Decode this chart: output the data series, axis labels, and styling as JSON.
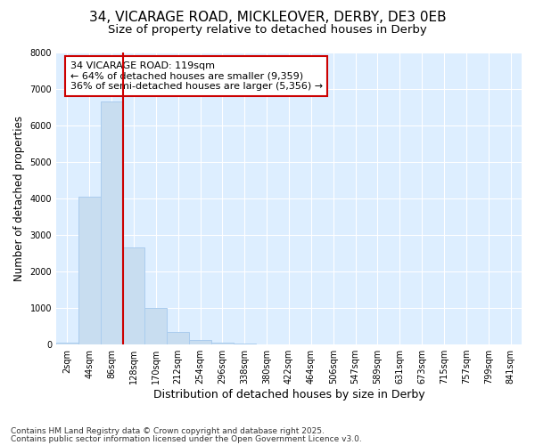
{
  "title1": "34, VICARAGE ROAD, MICKLEOVER, DERBY, DE3 0EB",
  "title2": "Size of property relative to detached houses in Derby",
  "xlabel": "Distribution of detached houses by size in Derby",
  "ylabel": "Number of detached properties",
  "categories": [
    "2sqm",
    "44sqm",
    "86sqm",
    "128sqm",
    "170sqm",
    "212sqm",
    "254sqm",
    "296sqm",
    "338sqm",
    "380sqm",
    "422sqm",
    "464sqm",
    "506sqm",
    "547sqm",
    "589sqm",
    "631sqm",
    "673sqm",
    "715sqm",
    "757sqm",
    "799sqm",
    "841sqm"
  ],
  "values": [
    50,
    4050,
    6650,
    2650,
    1000,
    340,
    120,
    60,
    20,
    5,
    3,
    2,
    0,
    0,
    0,
    0,
    0,
    0,
    0,
    0,
    0
  ],
  "bar_color": "#c8ddf0",
  "bar_edge_color": "#aaccee",
  "vline_x_index": 2.5,
  "vline_color": "#cc0000",
  "annotation_text": "34 VICARAGE ROAD: 119sqm\n← 64% of detached houses are smaller (9,359)\n36% of semi-detached houses are larger (5,356) →",
  "annotation_box_facecolor": "#ffffff",
  "annotation_box_edgecolor": "#cc0000",
  "ylim": [
    0,
    8000
  ],
  "yticks": [
    0,
    1000,
    2000,
    3000,
    4000,
    5000,
    6000,
    7000,
    8000
  ],
  "fig_bg_color": "#ffffff",
  "plot_bg_color": "#ddeeff",
  "footer1": "Contains HM Land Registry data © Crown copyright and database right 2025.",
  "footer2": "Contains public sector information licensed under the Open Government Licence v3.0.",
  "title1_fontsize": 11,
  "title2_fontsize": 9.5,
  "xlabel_fontsize": 9,
  "ylabel_fontsize": 8.5,
  "tick_fontsize": 7,
  "ann_fontsize": 8,
  "footer_fontsize": 6.5
}
